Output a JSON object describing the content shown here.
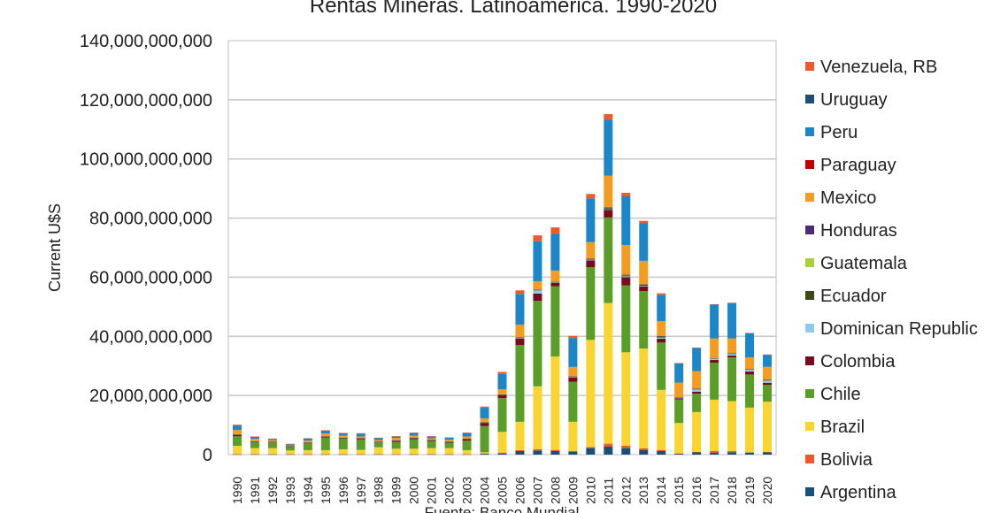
{
  "chart_data": {
    "type": "bar",
    "stacked": true,
    "title": "Rentas Mineras. Latinoamerica. 1990-2020",
    "xlabel": "",
    "ylabel": "Current U$S",
    "source": "Fuente: Banco Mundial",
    "ylim": [
      0,
      140000000000
    ],
    "yticks": [
      0,
      20000000000,
      40000000000,
      60000000000,
      80000000000,
      100000000000,
      120000000000,
      140000000000
    ],
    "ytick_labels": [
      "0",
      "20,000,000,000",
      "40,000,000,000",
      "60,000,000,000",
      "80,000,000,000",
      "100,000,000,000",
      "120,000,000,000",
      "140,000,000,000"
    ],
    "grid": true,
    "legend_placement": "right",
    "categories": [
      "1990",
      "1991",
      "1992",
      "1993",
      "1994",
      "1995",
      "1996",
      "1997",
      "1998",
      "1999",
      "2000",
      "2001",
      "2002",
      "2003",
      "2004",
      "2005",
      "2006",
      "2007",
      "2008",
      "2009",
      "2010",
      "2011",
      "2012",
      "2013",
      "2014",
      "2015",
      "2016",
      "2017",
      "2018",
      "2019",
      "2020"
    ],
    "series": [
      {
        "name": "Argentina",
        "color": "#1a4f7a",
        "values": [
          100000000.0,
          100000000.0,
          100000000.0,
          100000000.0,
          100000000.0,
          100000000.0,
          100000000.0,
          100000000.0,
          100000000.0,
          100000000.0,
          100000000.0,
          100000000.0,
          100000000.0,
          100000000.0,
          300000000.0,
          400000000.0,
          1200000000.0,
          1400000000.0,
          1200000000.0,
          1000000000.0,
          2200000000.0,
          2700000000.0,
          2200000000.0,
          1500000000.0,
          1200000000.0,
          300000000.0,
          800000000.0,
          600000000.0,
          800000000.0,
          700000000.0,
          800000000.0
        ]
      },
      {
        "name": "Bolivia",
        "color": "#f0572a",
        "values": [
          100000000.0,
          100000000.0,
          100000000.0,
          100000000.0,
          100000000.0,
          100000000.0,
          100000000.0,
          100000000.0,
          100000000.0,
          100000000.0,
          100000000.0,
          100000000.0,
          100000000.0,
          100000000.0,
          100000000.0,
          300000000.0,
          300000000.0,
          400000000.0,
          400000000.0,
          200000000.0,
          400000000.0,
          1000000000.0,
          800000000.0,
          600000000.0,
          400000000.0,
          100000000.0,
          100000000.0,
          600000000.0,
          400000000.0,
          100000000.0,
          100000000.0
        ]
      },
      {
        "name": "Brazil",
        "color": "#fad52f",
        "values": [
          2800000000.0,
          2000000000.0,
          2000000000.0,
          1200000000.0,
          1300000000.0,
          1300000000.0,
          1600000000.0,
          1400000000.0,
          2300000000.0,
          1800000000.0,
          1800000000.0,
          2000000000.0,
          2000000000.0,
          1300000000.0,
          400000000.0,
          7000000000.0,
          9600000000.0,
          21300000000.0,
          31600000000.0,
          9900000000.0,
          36200000000.0,
          47600000000.0,
          31600000000.0,
          33800000000.0,
          20300000000.0,
          10300000000.0,
          13500000000.0,
          17400000000.0,
          16900000000.0,
          15100000000.0,
          17000000000.0
        ]
      },
      {
        "name": "Chile",
        "color": "#5a9e28",
        "values": [
          3200000000.0,
          2000000000.0,
          1800000000.0,
          1300000000.0,
          2300000000.0,
          4200000000.0,
          3500000000.0,
          3400000000.0,
          1500000000.0,
          2300000000.0,
          3200000000.0,
          2300000000.0,
          1800000000.0,
          3200000000.0,
          8900000000.0,
          11400000000.0,
          26000000000.0,
          28900000000.0,
          23700000000.0,
          13500000000.0,
          24600000000.0,
          28900000000.0,
          22600000000.0,
          19400000000.0,
          16000000000.0,
          8000000000.0,
          6200000000.0,
          12500000000.0,
          14800000000.0,
          11200000000.0,
          5700000000.0
        ]
      },
      {
        "name": "Colombia",
        "color": "#7a0a1e",
        "values": [
          500000000.0,
          200000000.0,
          200000000.0,
          100000000.0,
          200000000.0,
          300000000.0,
          300000000.0,
          400000000.0,
          200000000.0,
          400000000.0,
          400000000.0,
          300000000.0,
          300000000.0,
          600000000.0,
          1100000000.0,
          1100000000.0,
          2100000000.0,
          2500000000.0,
          1200000000.0,
          1500000000.0,
          2300000000.0,
          2600000000.0,
          2800000000.0,
          1600000000.0,
          1300000000.0,
          400000000.0,
          700000000.0,
          900000000.0,
          600000000.0,
          1000000000.0,
          700000000.0
        ]
      },
      {
        "name": "Dominican Republic",
        "color": "#8ec9ee",
        "values": [
          50000000.0,
          50000000.0,
          50000000.0,
          50000000.0,
          50000000.0,
          50000000.0,
          50000000.0,
          50000000.0,
          50000000.0,
          50000000.0,
          50000000.0,
          50000000.0,
          50000000.0,
          50000000.0,
          50000000.0,
          50000000.0,
          200000000.0,
          1100000000.0,
          100000000.0,
          100000000.0,
          100000000.0,
          100000000.0,
          300000000.0,
          200000000.0,
          400000000.0,
          100000000.0,
          800000000.0,
          500000000.0,
          600000000.0,
          700000000.0,
          800000000.0
        ]
      },
      {
        "name": "Ecuador",
        "color": "#3a4a17",
        "values": [
          50000000.0,
          50000000.0,
          50000000.0,
          50000000.0,
          50000000.0,
          50000000.0,
          50000000.0,
          50000000.0,
          50000000.0,
          50000000.0,
          50000000.0,
          50000000.0,
          50000000.0,
          50000000.0,
          50000000.0,
          50000000.0,
          100000000.0,
          100000000.0,
          100000000.0,
          100000000.0,
          200000000.0,
          500000000.0,
          300000000.0,
          400000000.0,
          400000000.0,
          100000000.0,
          100000000.0,
          100000000.0,
          100000000.0,
          100000000.0,
          100000000.0
        ]
      },
      {
        "name": "Guatemala",
        "color": "#a9cf3b",
        "values": [
          20000000.0,
          20000000.0,
          20000000.0,
          20000000.0,
          20000000.0,
          20000000.0,
          20000000.0,
          20000000.0,
          20000000.0,
          20000000.0,
          20000000.0,
          20000000.0,
          20000000.0,
          20000000.0,
          20000000.0,
          50000000.0,
          100000000.0,
          100000000.0,
          100000000.0,
          100000000.0,
          200000000.0,
          300000000.0,
          200000000.0,
          100000000.0,
          100000000.0,
          50000000.0,
          50000000.0,
          50000000.0,
          50000000.0,
          50000000.0,
          50000000.0
        ]
      },
      {
        "name": "Honduras",
        "color": "#4b2a7a",
        "values": [
          20000000.0,
          20000000.0,
          20000000.0,
          20000000.0,
          20000000.0,
          20000000.0,
          20000000.0,
          20000000.0,
          20000000.0,
          20000000.0,
          20000000.0,
          20000000.0,
          20000000.0,
          20000000.0,
          20000000.0,
          20000000.0,
          50000000.0,
          50000000.0,
          50000000.0,
          50000000.0,
          50000000.0,
          50000000.0,
          50000000.0,
          50000000.0,
          50000000.0,
          20000000.0,
          20000000.0,
          20000000.0,
          20000000.0,
          20000000.0,
          20000000.0
        ]
      },
      {
        "name": "Mexico",
        "color": "#f39c1f",
        "values": [
          1500000000.0,
          800000000.0,
          600000000.0,
          200000000.0,
          600000000.0,
          1000000000.0,
          700000000.0,
          600000000.0,
          600000000.0,
          800000000.0,
          700000000.0,
          600000000.0,
          600000000.0,
          700000000.0,
          1300000000.0,
          1700000000.0,
          4300000000.0,
          2800000000.0,
          3800000000.0,
          3200000000.0,
          5600000000.0,
          10600000000.0,
          10000000000.0,
          7900000000.0,
          5000000000.0,
          5000000000.0,
          6000000000.0,
          6600000000.0,
          5000000000.0,
          3900000000.0,
          4400000000.0
        ]
      },
      {
        "name": "Paraguay",
        "color": "#c00000",
        "values": [
          0,
          0,
          0,
          0,
          0,
          0,
          0,
          0,
          0,
          0,
          0,
          0,
          0,
          0,
          0,
          0,
          0,
          0,
          0,
          0,
          0,
          0,
          0,
          0,
          0,
          0,
          0,
          0,
          0,
          0,
          0
        ]
      },
      {
        "name": "Peru",
        "color": "#1b87c9",
        "values": [
          1500000000.0,
          700000000.0,
          400000000.0,
          400000000.0,
          700000000.0,
          1000000000.0,
          800000000.0,
          1000000000.0,
          700000000.0,
          500000000.0,
          900000000.0,
          600000000.0,
          700000000.0,
          1200000000.0,
          3600000000.0,
          5200000000.0,
          10400000000.0,
          13500000000.0,
          12400000000.0,
          9800000000.0,
          14800000000.0,
          18900000000.0,
          16500000000.0,
          12800000000.0,
          8900000000.0,
          6500000000.0,
          7800000000.0,
          11500000000.0,
          12000000000.0,
          8200000000.0,
          4100000000.0
        ]
      },
      {
        "name": "Uruguay",
        "color": "#1f4e79",
        "values": [
          0,
          0,
          0,
          0,
          0,
          0,
          0,
          0,
          0,
          0,
          0,
          0,
          0,
          0,
          0,
          0,
          0,
          0,
          0,
          0,
          0,
          0,
          0,
          0,
          0,
          0,
          0,
          0,
          0,
          0,
          0
        ]
      },
      {
        "name": "Venezuela, RB",
        "color": "#f0572a",
        "values": [
          300000000.0,
          100000000.0,
          100000000.0,
          100000000.0,
          100000000.0,
          100000000.0,
          100000000.0,
          100000000.0,
          100000000.0,
          100000000.0,
          100000000.0,
          100000000.0,
          100000000.0,
          100000000.0,
          400000000.0,
          700000000.0,
          1200000000.0,
          2000000000.0,
          2200000000.0,
          700000000.0,
          1500000000.0,
          1900000000.0,
          1200000000.0,
          700000000.0,
          500000000.0,
          100000000.0,
          100000000.0,
          100000000.0,
          100000000.0,
          100000000.0,
          100000000.0
        ]
      }
    ]
  }
}
